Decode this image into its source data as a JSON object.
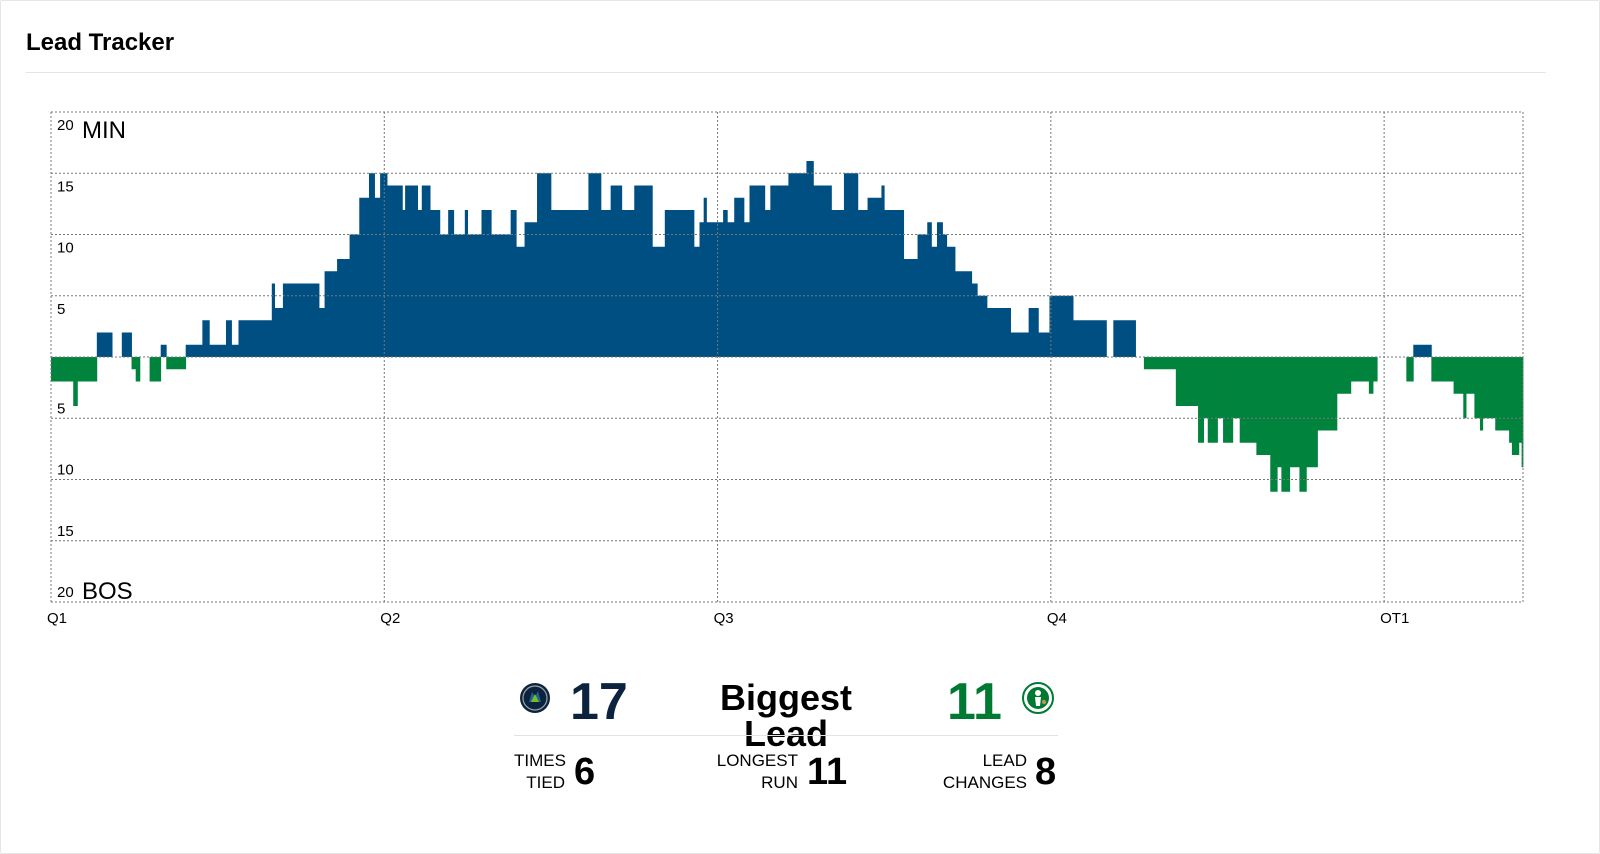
{
  "title": "Lead Tracker",
  "colors": {
    "min": "#004f82",
    "bos": "#00843d",
    "min_number": "#0c2340",
    "bos_number": "#007a33",
    "grid": "#777777"
  },
  "chart_data": {
    "type": "bar",
    "top_team_label": "MIN",
    "bottom_team_label": "BOS",
    "y_tick_labels": [
      "20",
      "15",
      "10",
      "5",
      "5",
      "10",
      "15",
      "20"
    ],
    "y_ticks": [
      20,
      15,
      10,
      5,
      -5,
      -10,
      -15,
      -20
    ],
    "ylim": [
      -20,
      20
    ],
    "x_axis": "game minutes",
    "xlim": [
      0,
      53
    ],
    "periods": [
      {
        "label": "Q1",
        "start": 0
      },
      {
        "label": "Q2",
        "start": 12
      },
      {
        "label": "Q3",
        "start": 24
      },
      {
        "label": "Q4",
        "start": 36
      },
      {
        "label": "OT1",
        "start": 48
      }
    ],
    "grid": true,
    "series": [
      {
        "team": "MIN",
        "points": [
          [
            0.0,
            -2
          ],
          [
            0.5,
            -2
          ],
          [
            0.8,
            -4
          ],
          [
            0.95,
            -2
          ],
          [
            1.05,
            -2
          ],
          [
            1.65,
            2
          ],
          [
            2.2,
            0
          ],
          [
            2.55,
            2
          ],
          [
            2.9,
            -1
          ],
          [
            3.05,
            -2
          ],
          [
            3.2,
            0
          ],
          [
            3.55,
            -2
          ],
          [
            3.95,
            1
          ],
          [
            4.15,
            -1
          ],
          [
            4.85,
            1
          ],
          [
            5.45,
            3
          ],
          [
            5.7,
            1
          ],
          [
            6.3,
            3
          ],
          [
            6.5,
            1
          ],
          [
            6.75,
            3
          ],
          [
            7.95,
            6
          ],
          [
            8.05,
            4
          ],
          [
            8.35,
            6
          ],
          [
            9.65,
            4
          ],
          [
            9.85,
            7
          ],
          [
            10.3,
            8
          ],
          [
            10.75,
            10
          ],
          [
            11.1,
            13
          ],
          [
            11.45,
            15
          ],
          [
            11.65,
            13
          ],
          [
            11.85,
            15
          ],
          [
            12.1,
            14
          ],
          [
            12.65,
            12
          ],
          [
            12.75,
            14
          ],
          [
            13.2,
            12
          ],
          [
            13.35,
            14
          ],
          [
            13.65,
            12
          ],
          [
            14.0,
            10
          ],
          [
            14.3,
            12
          ],
          [
            14.5,
            10
          ],
          [
            14.9,
            12
          ],
          [
            15.0,
            10
          ],
          [
            15.5,
            12
          ],
          [
            15.85,
            10
          ],
          [
            16.55,
            12
          ],
          [
            16.75,
            9
          ],
          [
            17.05,
            11
          ],
          [
            17.5,
            15
          ],
          [
            18.0,
            12
          ],
          [
            19.35,
            15
          ],
          [
            19.8,
            12
          ],
          [
            20.15,
            14
          ],
          [
            20.55,
            12
          ],
          [
            21.0,
            14
          ],
          [
            21.65,
            9
          ],
          [
            22.1,
            12
          ],
          [
            23.15,
            9
          ],
          [
            23.35,
            11
          ],
          [
            23.5,
            13
          ],
          [
            23.6,
            11
          ],
          [
            24.2,
            12
          ],
          [
            24.35,
            11
          ],
          [
            24.6,
            13
          ],
          [
            24.95,
            11
          ],
          [
            25.15,
            14
          ],
          [
            25.7,
            12
          ],
          [
            25.9,
            14
          ],
          [
            26.55,
            15
          ],
          [
            27.2,
            16
          ],
          [
            27.45,
            14
          ],
          [
            28.1,
            12
          ],
          [
            28.55,
            15
          ],
          [
            29.05,
            12
          ],
          [
            29.4,
            13
          ],
          [
            29.9,
            14
          ],
          [
            30.0,
            12
          ],
          [
            30.45,
            12
          ],
          [
            30.7,
            8
          ],
          [
            31.2,
            10
          ],
          [
            31.55,
            11
          ],
          [
            31.7,
            9
          ],
          [
            31.9,
            11
          ],
          [
            32.1,
            10
          ],
          [
            32.25,
            9
          ],
          [
            32.55,
            7
          ],
          [
            33.15,
            6
          ],
          [
            33.35,
            5
          ],
          [
            33.7,
            4
          ],
          [
            34.15,
            4
          ],
          [
            34.55,
            2
          ],
          [
            35.2,
            4
          ],
          [
            35.55,
            2
          ],
          [
            35.95,
            5
          ],
          [
            36.25,
            5
          ],
          [
            36.8,
            3
          ],
          [
            38.0,
            0
          ],
          [
            38.25,
            3
          ],
          [
            39.05,
            0
          ],
          [
            39.35,
            -1
          ],
          [
            40.5,
            -4
          ],
          [
            41.3,
            -7
          ],
          [
            41.5,
            -5
          ],
          [
            41.65,
            -7
          ],
          [
            42.0,
            -5
          ],
          [
            42.2,
            -7
          ],
          [
            42.55,
            -5
          ],
          [
            42.8,
            -7
          ],
          [
            43.4,
            -8
          ],
          [
            43.9,
            -11
          ],
          [
            44.15,
            -9
          ],
          [
            44.3,
            -11
          ],
          [
            44.6,
            -9
          ],
          [
            44.95,
            -11
          ],
          [
            45.2,
            -9
          ],
          [
            45.6,
            -6
          ],
          [
            46.3,
            -3
          ],
          [
            46.8,
            -2
          ],
          [
            47.45,
            -3
          ],
          [
            47.6,
            -2
          ],
          [
            47.75,
            0
          ],
          [
            48.8,
            -2
          ],
          [
            49.05,
            1
          ],
          [
            49.7,
            -2
          ],
          [
            50.5,
            -3
          ],
          [
            50.85,
            -5
          ],
          [
            50.95,
            -3
          ],
          [
            51.25,
            -5
          ],
          [
            51.45,
            -6
          ],
          [
            51.55,
            -5
          ],
          [
            52.0,
            -6
          ],
          [
            52.5,
            -7
          ],
          [
            52.6,
            -8
          ],
          [
            52.85,
            -7
          ],
          [
            52.95,
            -9
          ]
        ]
      }
    ]
  },
  "stats": {
    "biggest_lead_label": "Biggest Lead",
    "min_biggest_lead": "17",
    "bos_biggest_lead": "11",
    "times_tied_label_1": "TIMES",
    "times_tied_label_2": "TIED",
    "times_tied": "6",
    "longest_run_label_1": "LONGEST",
    "longest_run_label_2": "RUN",
    "longest_run": "11",
    "lead_changes_label_1": "LEAD",
    "lead_changes_label_2": "CHANGES",
    "lead_changes": "8"
  }
}
